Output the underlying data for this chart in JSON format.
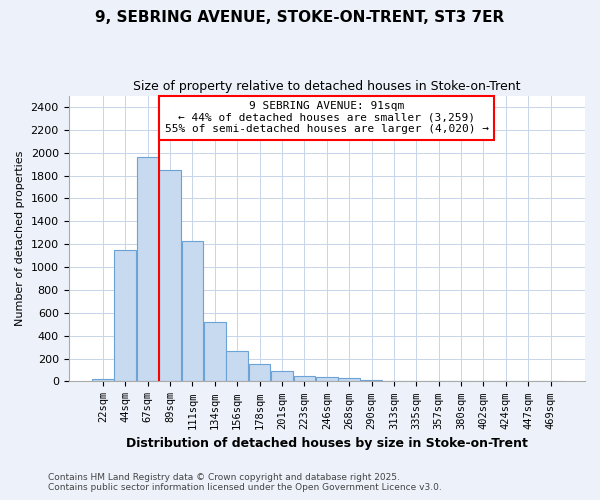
{
  "title1": "9, SEBRING AVENUE, STOKE-ON-TRENT, ST3 7ER",
  "title2": "Size of property relative to detached houses in Stoke-on-Trent",
  "xlabel": "Distribution of detached houses by size in Stoke-on-Trent",
  "ylabel": "Number of detached properties",
  "categories": [
    "22sqm",
    "44sqm",
    "67sqm",
    "89sqm",
    "111sqm",
    "134sqm",
    "156sqm",
    "178sqm",
    "201sqm",
    "223sqm",
    "246sqm",
    "268sqm",
    "290sqm",
    "313sqm",
    "335sqm",
    "357sqm",
    "380sqm",
    "402sqm",
    "424sqm",
    "447sqm",
    "469sqm"
  ],
  "values": [
    25,
    1150,
    1960,
    1850,
    1230,
    520,
    270,
    150,
    90,
    50,
    35,
    30,
    10,
    5,
    3,
    2,
    2,
    2,
    2,
    2,
    2
  ],
  "bar_color": "#c8daf0",
  "bar_edge_color": "#6ba3d6",
  "red_line_x": 2.5,
  "annotation_line1": "9 SEBRING AVENUE: 91sqm",
  "annotation_line2": "← 44% of detached houses are smaller (3,259)",
  "annotation_line3": "55% of semi-detached houses are larger (4,020) →",
  "ylim": [
    0,
    2500
  ],
  "yticks": [
    0,
    200,
    400,
    600,
    800,
    1000,
    1200,
    1400,
    1600,
    1800,
    2000,
    2200,
    2400
  ],
  "grid_color": "#c8d4e8",
  "plot_bg_color": "#ffffff",
  "fig_bg_color": "#edf2fa",
  "footer1": "Contains HM Land Registry data © Crown copyright and database right 2025.",
  "footer2": "Contains public sector information licensed under the Open Government Licence v3.0."
}
